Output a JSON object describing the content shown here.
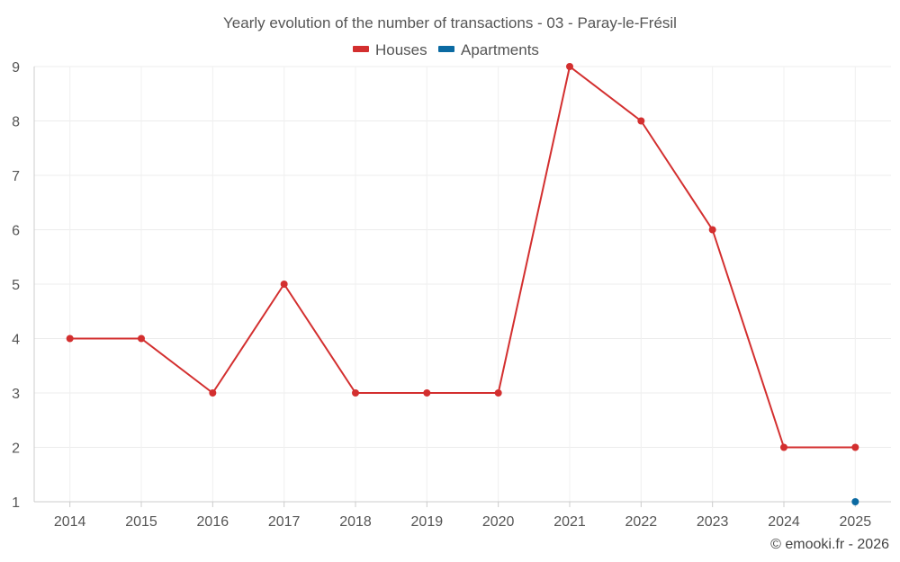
{
  "chart_data": {
    "type": "line",
    "title": "Yearly evolution of the number of transactions - 03 - Paray-le-Frésil",
    "categories": [
      "2014",
      "2015",
      "2016",
      "2017",
      "2018",
      "2019",
      "2020",
      "2021",
      "2022",
      "2023",
      "2024",
      "2025"
    ],
    "series": [
      {
        "name": "Houses",
        "color": "#d32f2f",
        "values": [
          4,
          4,
          3,
          5,
          3,
          3,
          3,
          9,
          8,
          6,
          2,
          2
        ]
      },
      {
        "name": "Apartments",
        "color": "#0b6aa2",
        "values": [
          null,
          null,
          null,
          null,
          null,
          null,
          null,
          null,
          null,
          null,
          null,
          1
        ]
      }
    ],
    "ylim": [
      1,
      9
    ],
    "yticks": [
      "1",
      "2",
      "3",
      "4",
      "5",
      "6",
      "7",
      "8",
      "9"
    ],
    "grid": true,
    "legend": "top-center",
    "xlabel": "",
    "ylabel": ""
  },
  "credit": "© emooki.fr - 2026"
}
